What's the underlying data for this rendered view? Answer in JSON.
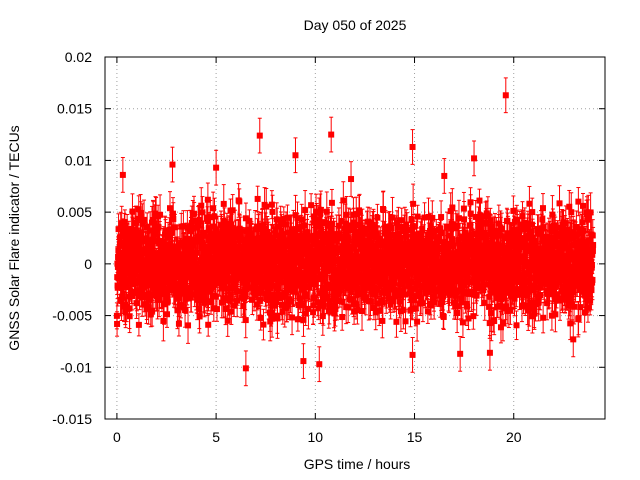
{
  "chart_data": {
    "type": "scatter",
    "title": "Day 050 of 2025",
    "xlabel": "GPS time / hours",
    "ylabel": "GNSS Solar Flare indicator / TECUs",
    "xlim": [
      -0.6,
      24.6
    ],
    "ylim": [
      -0.015,
      0.02
    ],
    "xticks": [
      0,
      5,
      10,
      15,
      20
    ],
    "yticks": [
      -0.015,
      -0.01,
      -0.005,
      0,
      0.005,
      0.01,
      0.015,
      0.02
    ],
    "xtick_labels": [
      "0",
      "5",
      "10",
      "15",
      "20"
    ],
    "ytick_labels": [
      "-0.015",
      "-0.01",
      "-0.005",
      "0",
      "0.005",
      "0.01",
      "0.015",
      "0.02"
    ],
    "grid": true,
    "series_color": "#ff0000",
    "marker": "square-with-errorbars",
    "series": [
      {
        "name": "Solar flare indicator",
        "x_range_hours": [
          0,
          24
        ],
        "point_count": 2880,
        "typical_value_range": [
          -0.006,
          0.006
        ],
        "typical_error": 0.0015,
        "seed": 50
      }
    ],
    "notable_points": [
      {
        "x": 19.6,
        "y": 0.0163
      },
      {
        "x": 7.2,
        "y": 0.0124
      },
      {
        "x": 10.8,
        "y": 0.0125
      },
      {
        "x": 14.9,
        "y": 0.0113
      },
      {
        "x": 9.0,
        "y": 0.0105
      },
      {
        "x": 18.0,
        "y": 0.0102
      },
      {
        "x": 2.8,
        "y": 0.0096
      },
      {
        "x": 0.3,
        "y": 0.0086
      },
      {
        "x": 6.5,
        "y": -0.0101
      },
      {
        "x": 10.2,
        "y": -0.0097
      },
      {
        "x": 9.4,
        "y": -0.0094
      },
      {
        "x": 14.9,
        "y": -0.0088
      },
      {
        "x": 17.3,
        "y": -0.0087
      },
      {
        "x": 18.8,
        "y": -0.0086
      },
      {
        "x": 23.0,
        "y": -0.0073
      },
      {
        "x": 5.0,
        "y": 0.0093
      },
      {
        "x": 11.8,
        "y": 0.0082
      },
      {
        "x": 16.5,
        "y": 0.0085
      }
    ]
  }
}
